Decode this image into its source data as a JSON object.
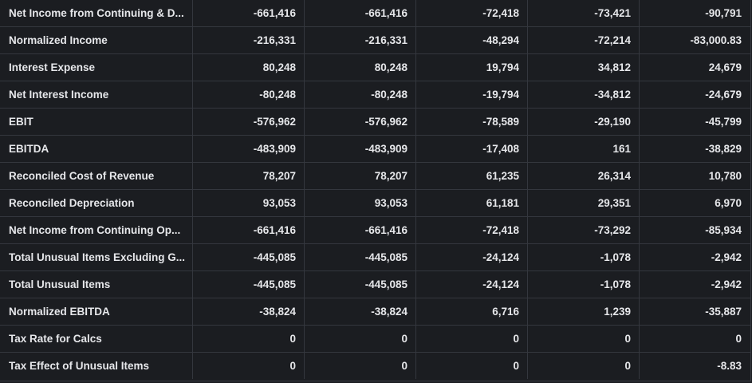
{
  "rows": [
    {
      "label": "Net Income from Continuing & D...",
      "values": [
        "-661,416",
        "-661,416",
        "-72,418",
        "-73,421",
        "-90,791"
      ]
    },
    {
      "label": "Normalized Income",
      "values": [
        "-216,331",
        "-216,331",
        "-48,294",
        "-72,214",
        "-83,000.83"
      ]
    },
    {
      "label": "Interest Expense",
      "values": [
        "80,248",
        "80,248",
        "19,794",
        "34,812",
        "24,679"
      ]
    },
    {
      "label": "Net Interest Income",
      "values": [
        "-80,248",
        "-80,248",
        "-19,794",
        "-34,812",
        "-24,679"
      ]
    },
    {
      "label": "EBIT",
      "values": [
        "-576,962",
        "-576,962",
        "-78,589",
        "-29,190",
        "-45,799"
      ]
    },
    {
      "label": "EBITDA",
      "values": [
        "-483,909",
        "-483,909",
        "-17,408",
        "161",
        "-38,829"
      ]
    },
    {
      "label": "Reconciled Cost of Revenue",
      "values": [
        "78,207",
        "78,207",
        "61,235",
        "26,314",
        "10,780"
      ]
    },
    {
      "label": "Reconciled Depreciation",
      "values": [
        "93,053",
        "93,053",
        "61,181",
        "29,351",
        "6,970"
      ]
    },
    {
      "label": "Net Income from Continuing Op...",
      "values": [
        "-661,416",
        "-661,416",
        "-72,418",
        "-73,292",
        "-85,934"
      ]
    },
    {
      "label": "Total Unusual Items Excluding G...",
      "values": [
        "-445,085",
        "-445,085",
        "-24,124",
        "-1,078",
        "-2,942"
      ]
    },
    {
      "label": "Total Unusual Items",
      "values": [
        "-445,085",
        "-445,085",
        "-24,124",
        "-1,078",
        "-2,942"
      ]
    },
    {
      "label": "Normalized EBITDA",
      "values": [
        "-38,824",
        "-38,824",
        "6,716",
        "1,239",
        "-35,887"
      ]
    },
    {
      "label": "Tax Rate for Calcs",
      "values": [
        "0",
        "0",
        "0",
        "0",
        "0"
      ]
    },
    {
      "label": "Tax Effect of Unusual Items",
      "values": [
        "0",
        "0",
        "0",
        "0",
        "-8.83"
      ]
    }
  ]
}
